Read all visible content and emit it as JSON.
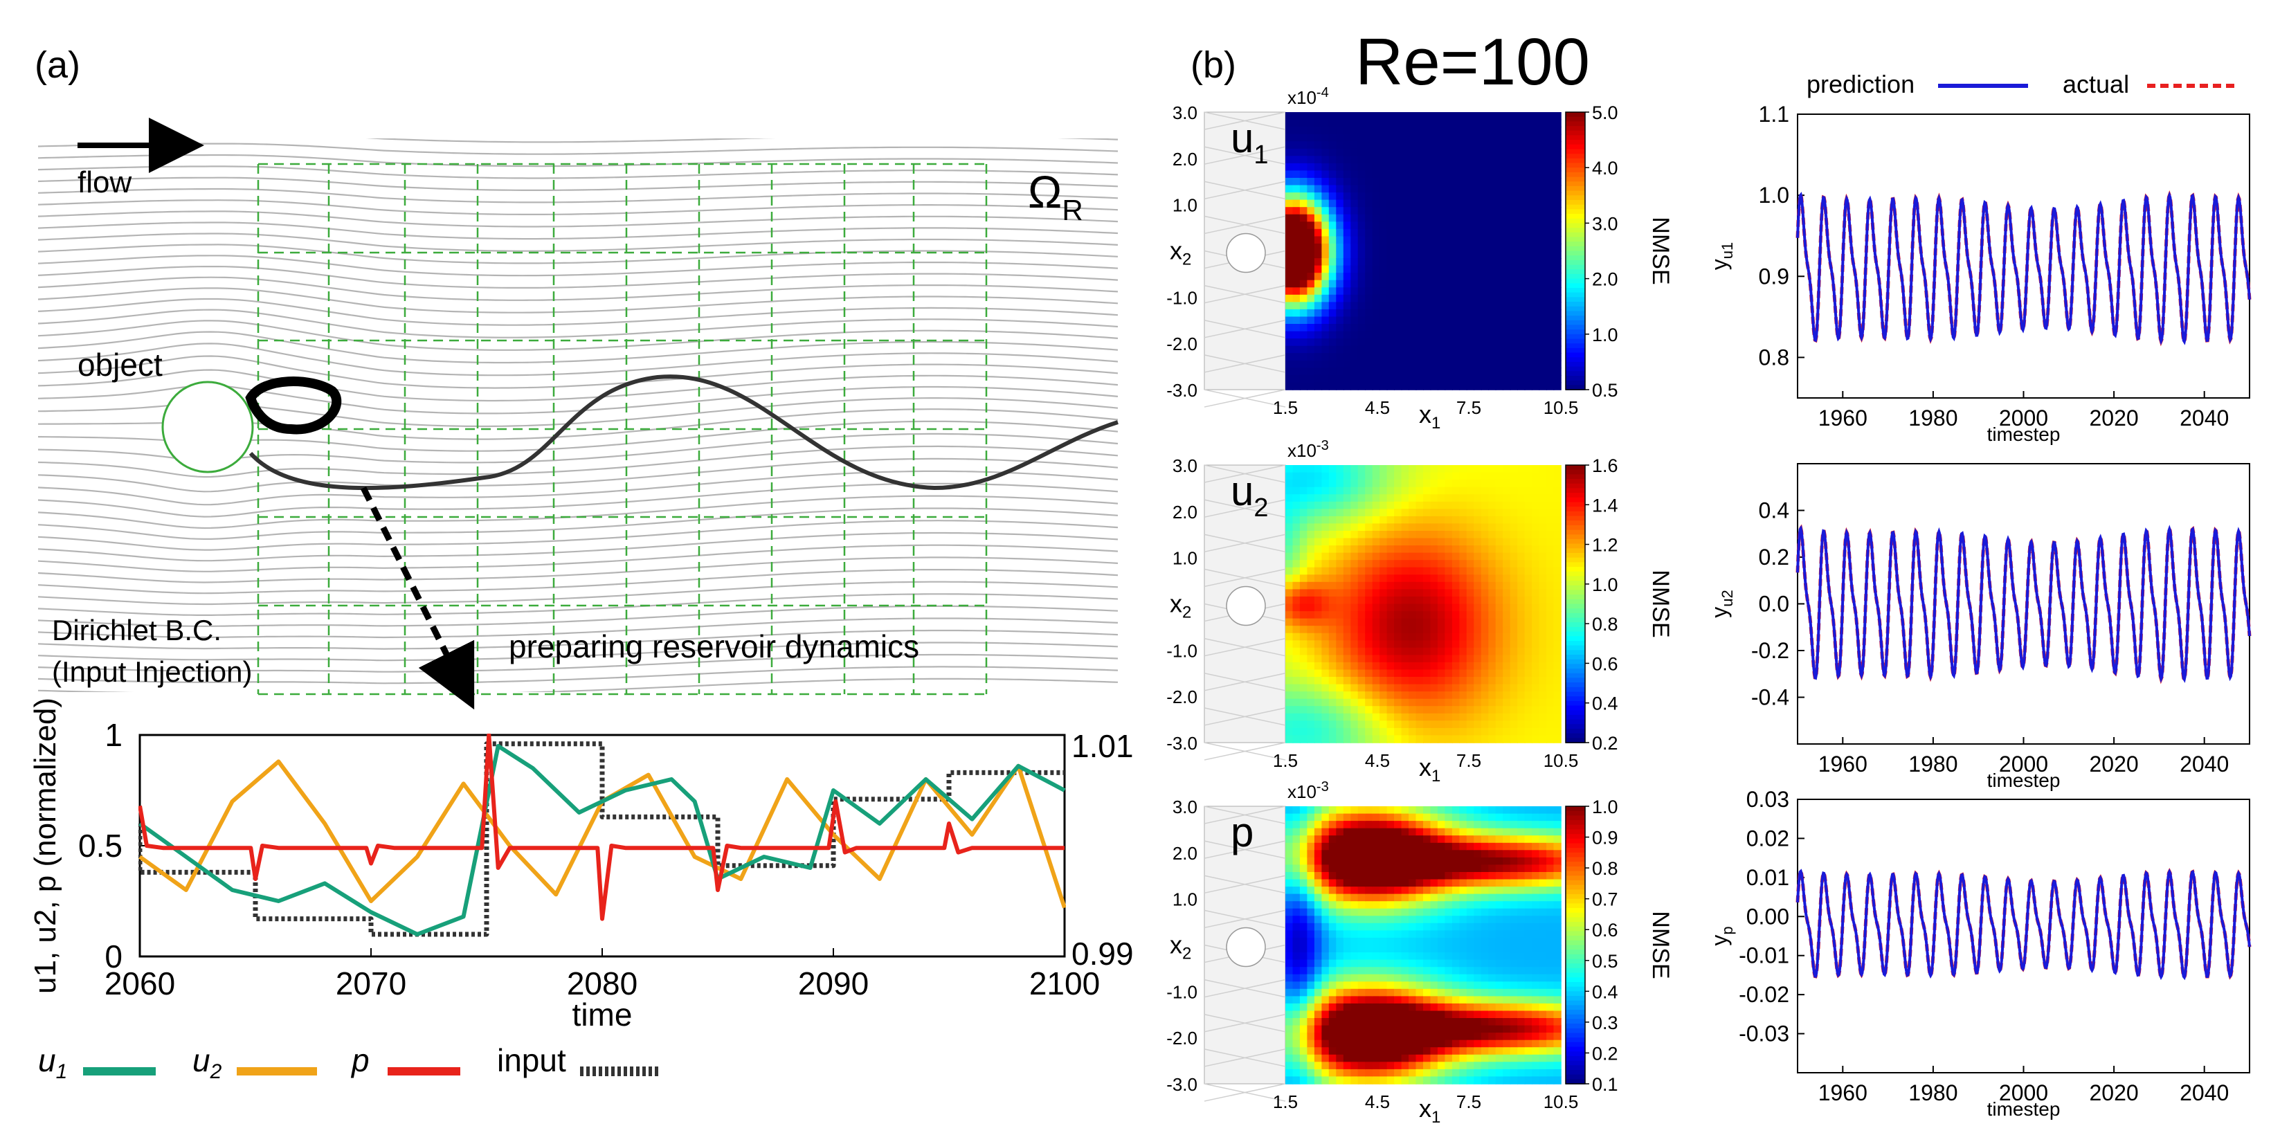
{
  "panel_a": {
    "label": "(a)",
    "flow_label": "flow",
    "domain_label": "Ω",
    "domain_sub": "R",
    "object_label": "object",
    "bc_line1": "Dirichlet B.C.",
    "bc_line2": "(Input Injection)",
    "reservoir_label": "preparing reservoir dynamics",
    "colors": {
      "u1": "#17a07a",
      "u2": "#f0a318",
      "p": "#e8231b",
      "input": "#333333",
      "grid": "#3cab3c"
    }
  },
  "panel_b": {
    "label": "(b)",
    "title": "Re=100"
  },
  "chart_data": [
    {
      "id": "timeseries",
      "type": "line",
      "xlabel": "time",
      "ylabel": "u1, u2, p (normalized)",
      "xlim": [
        2060,
        2100
      ],
      "ylim": [
        0,
        1
      ],
      "xticks": [
        "2060",
        "2070",
        "2080",
        "2090",
        "2100"
      ],
      "yticks": [
        "0",
        "0.5",
        "1"
      ],
      "right_ticks": [
        "0.99",
        "1.01"
      ],
      "legend": [
        "u1",
        "u2",
        "p",
        "input"
      ],
      "series": [
        {
          "name": "input",
          "color": "#333333",
          "dashed": true,
          "x": [
            2060,
            2060,
            2065,
            2065,
            2070,
            2070,
            2075,
            2075,
            2080,
            2080,
            2085,
            2085,
            2090,
            2090,
            2095,
            2095,
            2100
          ],
          "y": [
            0.6,
            0.38,
            0.38,
            0.17,
            0.17,
            0.1,
            0.1,
            0.96,
            0.96,
            0.63,
            0.63,
            0.41,
            0.41,
            0.71,
            0.71,
            0.83,
            0.83
          ]
        },
        {
          "name": "u1",
          "color": "#17a07a",
          "x": [
            2060,
            2062,
            2064,
            2066,
            2068,
            2070,
            2072,
            2074,
            2075.5,
            2077,
            2079,
            2081,
            2083,
            2084,
            2085,
            2087,
            2089,
            2090,
            2092,
            2094,
            2096,
            2098,
            2100
          ],
          "y": [
            0.6,
            0.45,
            0.3,
            0.25,
            0.33,
            0.2,
            0.1,
            0.18,
            0.95,
            0.85,
            0.65,
            0.75,
            0.8,
            0.7,
            0.35,
            0.45,
            0.4,
            0.75,
            0.6,
            0.8,
            0.62,
            0.86,
            0.75
          ]
        },
        {
          "name": "u2",
          "color": "#f0a318",
          "x": [
            2060,
            2062,
            2064,
            2066,
            2068,
            2070,
            2072,
            2074,
            2076,
            2078,
            2080,
            2082,
            2084,
            2086,
            2088,
            2090,
            2092,
            2094,
            2096,
            2098,
            2100
          ],
          "y": [
            0.45,
            0.3,
            0.7,
            0.88,
            0.6,
            0.25,
            0.45,
            0.78,
            0.5,
            0.28,
            0.7,
            0.82,
            0.45,
            0.35,
            0.8,
            0.55,
            0.35,
            0.8,
            0.55,
            0.86,
            0.22
          ]
        },
        {
          "name": "p",
          "color": "#e8231b",
          "x": [
            2060,
            2060.3,
            2061,
            2064.8,
            2065,
            2065.3,
            2066,
            2069.8,
            2070,
            2070.3,
            2071,
            2074.8,
            2075.1,
            2075.5,
            2076,
            2079.8,
            2080,
            2080.4,
            2081,
            2084.8,
            2085,
            2085.4,
            2086,
            2089.8,
            2090.1,
            2090.5,
            2091,
            2094.8,
            2095,
            2095.4,
            2096,
            2100
          ],
          "y": [
            0.68,
            0.5,
            0.49,
            0.49,
            0.35,
            0.5,
            0.49,
            0.49,
            0.42,
            0.5,
            0.49,
            0.49,
            1.0,
            0.4,
            0.49,
            0.49,
            0.17,
            0.5,
            0.49,
            0.49,
            0.3,
            0.5,
            0.49,
            0.49,
            0.7,
            0.47,
            0.49,
            0.49,
            0.6,
            0.47,
            0.49,
            0.49
          ]
        }
      ]
    },
    {
      "id": "heatmap_u1",
      "type": "heatmap",
      "var_label": "u",
      "var_sub": "1",
      "exponent": "x10",
      "exponent_sup": "-4",
      "xlabel": "x",
      "xlabel_sub": "1",
      "ylabel": "x",
      "ylabel_sub": "2",
      "xticks": [
        "1.5",
        "4.5",
        "7.5",
        "10.5"
      ],
      "yticks": [
        "3.0",
        "2.0",
        "1.0",
        "0.0",
        "-1.0",
        "-2.0",
        "-3.0"
      ],
      "colorbar_label": "NMSE",
      "colorbar_ticks": [
        "5.0",
        "4.0",
        "3.0",
        "2.0",
        "1.0",
        "0.5"
      ]
    },
    {
      "id": "heatmap_u2",
      "type": "heatmap",
      "var_label": "u",
      "var_sub": "2",
      "exponent": "x10",
      "exponent_sup": "-3",
      "xlabel": "x",
      "xlabel_sub": "1",
      "ylabel": "x",
      "ylabel_sub": "2",
      "xticks": [
        "1.5",
        "4.5",
        "7.5",
        "10.5"
      ],
      "yticks": [
        "3.0",
        "2.0",
        "1.0",
        "0.0",
        "-1.0",
        "-2.0",
        "-3.0"
      ],
      "colorbar_label": "NMSE",
      "colorbar_ticks": [
        "1.6",
        "1.4",
        "1.2",
        "1.0",
        "0.8",
        "0.6",
        "0.4",
        "0.2"
      ]
    },
    {
      "id": "heatmap_p",
      "type": "heatmap",
      "var_label": "p",
      "var_sub": "",
      "exponent": "x10",
      "exponent_sup": "-3",
      "xlabel": "x",
      "xlabel_sub": "1",
      "ylabel": "x",
      "ylabel_sub": "2",
      "xticks": [
        "1.5",
        "4.5",
        "7.5",
        "10.5"
      ],
      "yticks": [
        "3.0",
        "2.0",
        "1.0",
        "0.0",
        "-1.0",
        "-2.0",
        "-3.0"
      ],
      "colorbar_label": "NMSE",
      "colorbar_ticks": [
        "1.0",
        "0.9",
        "0.8",
        "0.7",
        "0.6",
        "0.5",
        "0.4",
        "0.3",
        "0.2",
        "0.1"
      ]
    },
    {
      "id": "pred_u1",
      "type": "line",
      "ylabel": "y",
      "ylabel_sub": "u1",
      "xlabel": "timestep",
      "xlim": [
        1950,
        2050
      ],
      "ylim": [
        0.75,
        1.1
      ],
      "yticks": [
        "1.1",
        "1.0",
        "0.9",
        "0.8"
      ],
      "xticks": [
        "1960",
        "1980",
        "2000",
        "2020",
        "2040"
      ],
      "period": 5.1,
      "center": 0.91,
      "amplitude": 0.14,
      "series": [
        {
          "name": "prediction",
          "color": "#1a1ad8"
        },
        {
          "name": "actual",
          "color": "#e82020"
        }
      ]
    },
    {
      "id": "pred_u2",
      "type": "line",
      "ylabel": "y",
      "ylabel_sub": "u2",
      "xlabel": "timestep",
      "xlim": [
        1950,
        2050
      ],
      "ylim": [
        -0.6,
        0.6
      ],
      "yticks": [
        "0.4",
        "0.2",
        "0.0",
        "-0.2",
        "-0.4"
      ],
      "xticks": [
        "1960",
        "1980",
        "2000",
        "2020",
        "2040"
      ],
      "period": 5.1,
      "center": 0.0,
      "amplitude": 0.5,
      "series": [
        {
          "name": "prediction",
          "color": "#1a1ad8"
        },
        {
          "name": "actual",
          "color": "#e82020"
        }
      ]
    },
    {
      "id": "pred_p",
      "type": "line",
      "ylabel": "y",
      "ylabel_sub": "p",
      "xlabel": "timestep",
      "xlim": [
        1950,
        2050
      ],
      "ylim": [
        -0.04,
        0.03
      ],
      "yticks": [
        "0.03",
        "0.02",
        "0.01",
        "0.00",
        "-0.01",
        "-0.02",
        "-0.03"
      ],
      "xticks": [
        "1960",
        "1980",
        "2000",
        "2020",
        "2040"
      ],
      "period": 5.1,
      "center": -0.002,
      "amplitude": 0.021,
      "series": [
        {
          "name": "prediction",
          "color": "#1a1ad8"
        },
        {
          "name": "actual",
          "color": "#e82020"
        }
      ]
    }
  ],
  "legend_b": {
    "prediction": "prediction",
    "actual": "actual"
  }
}
